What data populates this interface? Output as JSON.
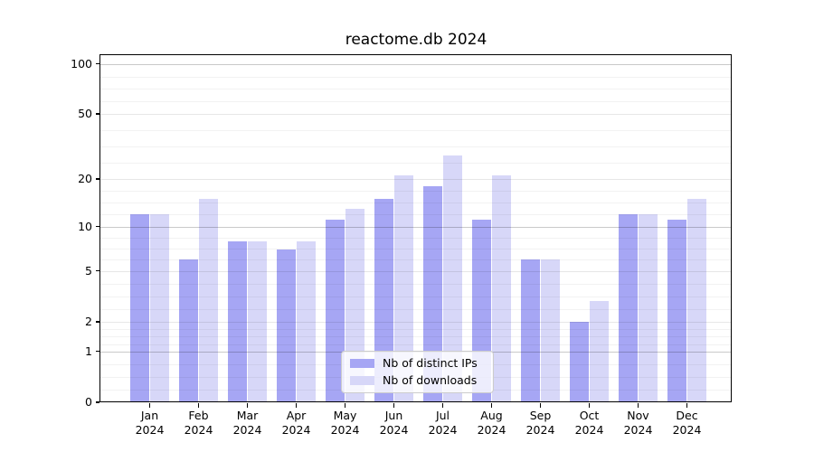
{
  "chart_data": {
    "type": "bar",
    "title": "reactome.db 2024",
    "scale": "log1p",
    "categories": [
      "Jan",
      "Feb",
      "Mar",
      "Apr",
      "May",
      "Jun",
      "Jul",
      "Aug",
      "Sep",
      "Oct",
      "Nov",
      "Dec"
    ],
    "x_sublabel": "2024",
    "series": [
      {
        "name": "Nb of distinct IPs",
        "color": "#a6a6f4",
        "values": [
          12,
          6,
          8,
          7,
          11,
          15,
          18,
          11,
          6,
          2,
          12,
          11
        ]
      },
      {
        "name": "Nb of downloads",
        "color": "#d7d7f8",
        "values": [
          12,
          15,
          8,
          8,
          13,
          21,
          28,
          21,
          6,
          3,
          12,
          15
        ]
      }
    ],
    "yticks": [
      0,
      1,
      2,
      5,
      10,
      20,
      50,
      100
    ],
    "ylim": [
      0,
      113
    ],
    "grid": true,
    "legend_position": "lower center",
    "axis_color": "#000000",
    "gridline_color": "#e7e7e7",
    "minor_gridline_color": "#f2f2f2",
    "emphasized_gridline_color": "#c9c9c9",
    "emphasized_gridlines": [
      1,
      10,
      100
    ]
  }
}
